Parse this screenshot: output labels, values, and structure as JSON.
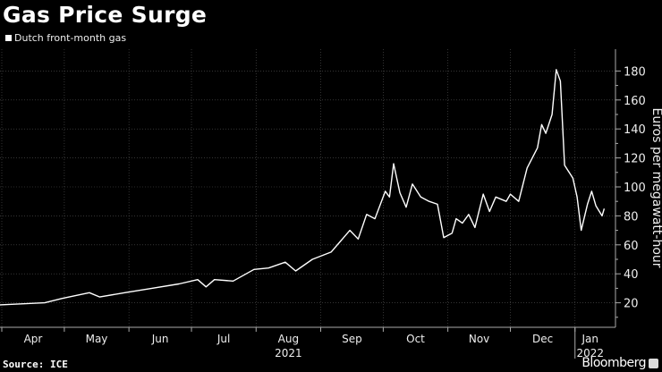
{
  "chart_data": {
    "type": "line",
    "title": "Gas Price Surge",
    "legend": [
      "Dutch front-month gas"
    ],
    "legend_placement": "top-left",
    "ylabel": "Euros per megawatt-hour",
    "xlabel": "",
    "ylim": [
      0,
      190
    ],
    "yticks": [
      20,
      40,
      60,
      80,
      100,
      120,
      140,
      160,
      180
    ],
    "x_unit": "days since 2021-04-01",
    "xlim": [
      -1,
      295
    ],
    "xticks": [
      {
        "day": 0,
        "label": "Apr"
      },
      {
        "day": 30,
        "label": "May"
      },
      {
        "day": 61,
        "label": "Jun"
      },
      {
        "day": 91,
        "label": "Jul"
      },
      {
        "day": 122,
        "label": "Aug"
      },
      {
        "day": 153,
        "label": "Sep"
      },
      {
        "day": 183,
        "label": "Oct"
      },
      {
        "day": 214,
        "label": "Nov"
      },
      {
        "day": 244,
        "label": "Dec"
      },
      {
        "day": 275,
        "label": "Jan"
      }
    ],
    "year_labels": [
      {
        "day": 122,
        "label": "2021"
      },
      {
        "day": 275,
        "label": "2022"
      }
    ],
    "grid": true,
    "series": [
      {
        "name": "Dutch front-month gas",
        "color": "#ffffff",
        "x": [
          -1,
          20.6,
          29,
          42,
          47,
          59,
          72,
          85,
          94,
          98,
          102,
          111,
          121,
          128,
          136,
          141,
          149,
          158,
          167,
          171,
          175,
          179,
          184,
          186,
          188,
          191,
          194,
          197,
          201,
          205,
          209,
          212,
          216,
          218,
          221,
          224,
          227,
          231,
          234,
          237,
          242,
          244,
          248,
          252,
          257,
          259,
          261,
          264,
          266,
          268,
          270,
          274,
          276,
          278,
          281,
          283,
          285,
          288,
          289
        ],
        "y": [
          18.5,
          20,
          23,
          27,
          24,
          27,
          30,
          33,
          36,
          31,
          36,
          35,
          43,
          44,
          48,
          42,
          50,
          55,
          70,
          64,
          81,
          78,
          97,
          93,
          116,
          96,
          86,
          102,
          93,
          90,
          88,
          65,
          68,
          78,
          75,
          81,
          72,
          95,
          83,
          93,
          90,
          95,
          90,
          113,
          127,
          143,
          137,
          150,
          181,
          173,
          115,
          106,
          93,
          70,
          88,
          97,
          87,
          80,
          85
        ]
      }
    ]
  },
  "footer": {
    "source": "Source: ICE",
    "brand": "Bloomberg"
  }
}
